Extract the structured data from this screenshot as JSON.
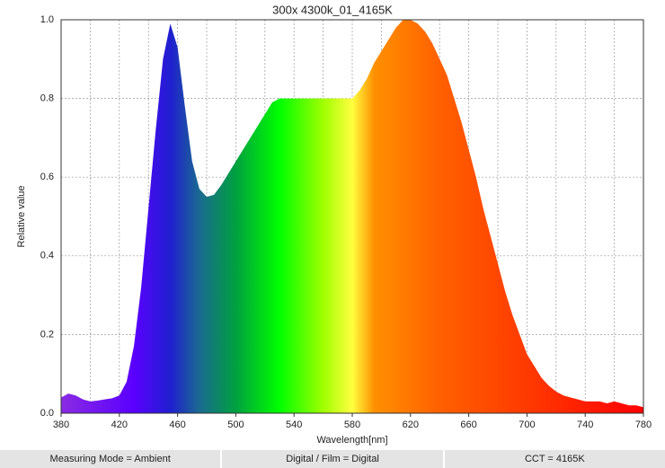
{
  "chart_data": {
    "type": "area",
    "title": "300x 4300k_01_4165K",
    "x_label": "Wavelength[nm]",
    "y_label": "Relative value",
    "x": [
      380,
      385,
      390,
      395,
      400,
      405,
      410,
      415,
      420,
      425,
      430,
      435,
      440,
      445,
      450,
      455,
      460,
      465,
      470,
      475,
      480,
      485,
      490,
      495,
      500,
      505,
      510,
      515,
      520,
      525,
      530,
      535,
      540,
      545,
      550,
      555,
      560,
      565,
      570,
      575,
      580,
      585,
      590,
      595,
      600,
      605,
      610,
      615,
      620,
      625,
      630,
      635,
      640,
      645,
      650,
      655,
      660,
      665,
      670,
      675,
      680,
      685,
      690,
      695,
      700,
      705,
      710,
      715,
      720,
      725,
      730,
      735,
      740,
      745,
      750,
      755,
      760,
      765,
      770,
      775,
      780
    ],
    "y": [
      0.04,
      0.05,
      0.045,
      0.035,
      0.03,
      0.032,
      0.035,
      0.038,
      0.045,
      0.08,
      0.17,
      0.32,
      0.52,
      0.72,
      0.9,
      0.99,
      0.93,
      0.78,
      0.64,
      0.57,
      0.55,
      0.555,
      0.58,
      0.61,
      0.64,
      0.67,
      0.7,
      0.73,
      0.76,
      0.79,
      0.8,
      0.8,
      0.8,
      0.8,
      0.8,
      0.8,
      0.8,
      0.8,
      0.8,
      0.8,
      0.8,
      0.82,
      0.85,
      0.89,
      0.92,
      0.95,
      0.98,
      1.0,
      1.0,
      0.99,
      0.97,
      0.94,
      0.9,
      0.86,
      0.8,
      0.74,
      0.67,
      0.6,
      0.52,
      0.45,
      0.38,
      0.31,
      0.25,
      0.2,
      0.15,
      0.12,
      0.09,
      0.07,
      0.055,
      0.045,
      0.04,
      0.035,
      0.03,
      0.03,
      0.03,
      0.025,
      0.03,
      0.025,
      0.02,
      0.02,
      0.015
    ],
    "xlim": [
      380,
      780
    ],
    "ylim": [
      0,
      1
    ],
    "xticks": [
      380,
      420,
      460,
      500,
      540,
      580,
      620,
      660,
      700,
      740,
      780
    ],
    "xgrid": [
      400,
      420,
      440,
      460,
      480,
      500,
      520,
      540,
      560,
      580,
      600,
      620,
      640,
      660,
      680,
      700,
      720,
      740,
      760
    ],
    "yticks": [
      {
        "value": 0,
        "label": "0.0"
      },
      {
        "value": 0.2,
        "label": "0.2"
      },
      {
        "value": 0.4,
        "label": "0.4"
      },
      {
        "value": 0.6,
        "label": "0.6"
      },
      {
        "value": 0.8,
        "label": "0.8"
      },
      {
        "value": 1,
        "label": "1.0"
      }
    ],
    "grid": true,
    "color_stops": [
      {
        "value": 380,
        "color": "#8a2be2"
      },
      {
        "value": 430,
        "color": "#5a00ff"
      },
      {
        "value": 455,
        "color": "#1f1fd0"
      },
      {
        "value": 475,
        "color": "#1a6a90"
      },
      {
        "value": 500,
        "color": "#00a040"
      },
      {
        "value": 530,
        "color": "#00ff00"
      },
      {
        "value": 560,
        "color": "#a0ff00"
      },
      {
        "value": 580,
        "color": "#ffff40"
      },
      {
        "value": 595,
        "color": "#ff9000"
      },
      {
        "value": 640,
        "color": "#ff6000"
      },
      {
        "value": 700,
        "color": "#ff3a00"
      },
      {
        "value": 780,
        "color": "#ff0000"
      }
    ]
  },
  "footer": {
    "cells": [
      "Measuring Mode = Ambient",
      "Digital / Film = Digital",
      "CCT = 4165K"
    ]
  }
}
